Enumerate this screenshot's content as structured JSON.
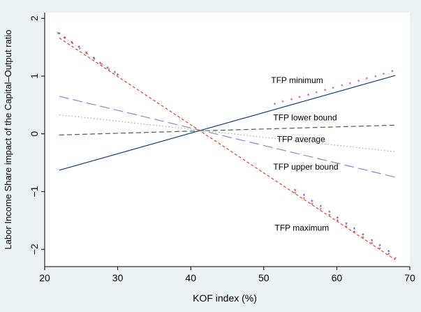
{
  "chart_data": {
    "type": "line",
    "title": "",
    "xlabel": "KOF index (%)",
    "ylabel": "Labor Income Share impact of the Capital–Output ratio",
    "xlim": [
      20,
      70
    ],
    "ylim": [
      -2.3,
      2.1
    ],
    "xticks": [
      20,
      30,
      40,
      50,
      60,
      70
    ],
    "yticks": [
      -2,
      -1,
      0,
      1,
      2
    ],
    "xtick_labels": [
      "20",
      "30",
      "40",
      "50",
      "60",
      "70"
    ],
    "ytick_labels": [
      "−2",
      "−1",
      "0",
      "1",
      "2"
    ],
    "grid": false,
    "series": [
      {
        "name": "TFP minimum",
        "style": "solid",
        "color": "#1a3f73",
        "x": [
          22,
          68
        ],
        "y": [
          -0.63,
          1.01
        ]
      },
      {
        "name": "TFP lower bound",
        "style": "dash",
        "color": "#3f6b37",
        "x": [
          22,
          68
        ],
        "y": [
          -0.02,
          0.15
        ]
      },
      {
        "name": "TFP average",
        "style": "dot",
        "color": "#a9a9a9",
        "x": [
          22,
          68
        ],
        "y": [
          0.33,
          -0.31
        ]
      },
      {
        "name": "TFP upper bound",
        "style": "longdash",
        "color": "#8a88c8",
        "x": [
          22,
          68
        ],
        "y": [
          0.65,
          -0.75
        ]
      },
      {
        "name": "TFP maximum",
        "style": "shortdash",
        "color": "#cc4a2c",
        "x": [
          22,
          68
        ],
        "y": [
          1.66,
          -2.18
        ]
      }
    ],
    "markers": [
      {
        "color": "#2f2fa0",
        "x": [
          22.0,
          22.7,
          23.7,
          24.7,
          25.7,
          26.7,
          27.6,
          28.6,
          29.6,
          30.0
        ],
        "y": [
          1.73,
          1.66,
          1.58,
          1.5,
          1.4,
          1.31,
          1.22,
          1.14,
          1.06,
          1.02
        ]
      },
      {
        "color": "#c43c3c",
        "x": [
          21.8,
          22.8,
          23.8,
          24.8,
          25.8,
          26.8,
          27.8,
          28.8
        ],
        "y": [
          1.74,
          1.65,
          1.56,
          1.47,
          1.38,
          1.29,
          1.2,
          1.11
        ]
      },
      {
        "color": "#2f2fa0",
        "x": [
          54.3,
          55.5,
          56.6,
          57.8,
          59.0,
          60.1,
          61.3,
          62.4,
          63.6,
          64.8,
          65.9,
          67.1
        ],
        "y": [
          -0.98,
          -1.07,
          -1.17,
          -1.26,
          -1.36,
          -1.46,
          -1.56,
          -1.65,
          -1.75,
          -1.85,
          -1.94,
          -2.04
        ]
      },
      {
        "color": "#c43c3c",
        "x": [
          54.3,
          55.5,
          56.6,
          57.8,
          59.0,
          60.1,
          61.3,
          62.4,
          63.6,
          64.8,
          65.9,
          67.1,
          68.0
        ],
        "y": [
          -1.03,
          -1.12,
          -1.22,
          -1.31,
          -1.41,
          -1.51,
          -1.61,
          -1.7,
          -1.8,
          -1.9,
          -1.99,
          -2.09,
          -2.16
        ]
      },
      {
        "color": "#c43c3c",
        "x": [
          51.5,
          52.6,
          53.8,
          54.9,
          56.1,
          57.2,
          58.4,
          59.5,
          60.7,
          61.8,
          63.0,
          64.1,
          65.3,
          66.4,
          67.6
        ],
        "y": [
          0.51,
          0.55,
          0.59,
          0.63,
          0.67,
          0.71,
          0.75,
          0.79,
          0.83,
          0.87,
          0.91,
          0.95,
          0.99,
          1.03,
          1.08
        ]
      }
    ],
    "annotations": [
      {
        "text": "TFP minimum",
        "x": 51.0,
        "y": 0.88
      },
      {
        "text": "TFP lower bound",
        "x": 51.3,
        "y": 0.23
      },
      {
        "text": "TFP average",
        "x": 51.8,
        "y": -0.14
      },
      {
        "text": "TFP upper bound",
        "x": 51.3,
        "y": -0.62
      },
      {
        "text": "TFP maximum",
        "x": 51.5,
        "y": -1.68
      }
    ]
  }
}
